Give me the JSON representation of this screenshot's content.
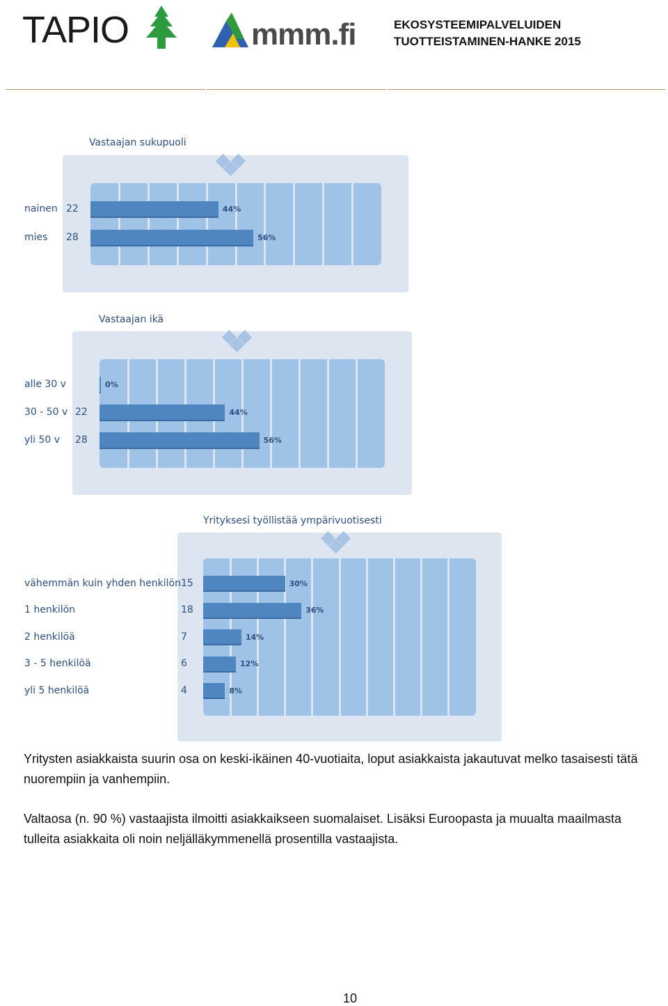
{
  "header": {
    "logo_tapio": "TAPIO",
    "logo_mmm": "mmm.fi",
    "project_line1": "EKOSYSTEEMIPALVELUIDEN",
    "project_line2": "TUOTTEISTAMINEN-HANKE 2015"
  },
  "colors": {
    "panel": "#dde5f1",
    "plot": "#9fc2e7",
    "bar": "#4f85c0",
    "label": "#2b4f7e",
    "tapio_green": "#2e9a3e",
    "header_rule": "#b5976b"
  },
  "chart_data": [
    {
      "type": "bar",
      "title": "Vastaajan sukupuoli",
      "categories": [
        "nainen",
        "mies"
      ],
      "counts": [
        "22",
        "28"
      ],
      "values": [
        44,
        56
      ],
      "value_labels": [
        "44%",
        "56%"
      ],
      "xlim": [
        0,
        100
      ]
    },
    {
      "type": "bar",
      "title": "Vastaajan ikä",
      "categories": [
        "alle 30 v",
        "30 - 50 v",
        "yli 50 v"
      ],
      "counts": [
        "",
        "22",
        "28"
      ],
      "values": [
        0,
        44,
        56
      ],
      "value_labels": [
        "0%",
        "44%",
        "56%"
      ],
      "xlim": [
        0,
        100
      ]
    },
    {
      "type": "bar",
      "title": "Yrityksesi työllistää ympärivuotisesti",
      "categories": [
        "vähemmän kuin yhden henkilön",
        "1 henkilön",
        "2 henkilöä",
        "3 - 5 henkilöä",
        "yli 5 henkilöä"
      ],
      "counts": [
        "15",
        "18",
        "7",
        "6",
        "4"
      ],
      "values": [
        30,
        36,
        14,
        12,
        8
      ],
      "value_labels": [
        "30%",
        "36%",
        "14%",
        "12%",
        "8%"
      ],
      "xlim": [
        0,
        100
      ]
    }
  ],
  "body": {
    "para1": "Yritysten asiakkaista suurin osa on keski-ikäinen 40-vuotiaita, loput asiakkaista jakautuvat melko tasaisesti tätä nuorempiin ja vanhempiin.",
    "para2": "Valtaosa (n. 90 %) vastaajista ilmoitti asiakkaikseen suomalaiset. Lisäksi Euroopasta ja muualta maailmasta tulleita asiakkaita oli noin neljälläkymmenellä prosentilla vastaajista."
  },
  "page_number": "10"
}
